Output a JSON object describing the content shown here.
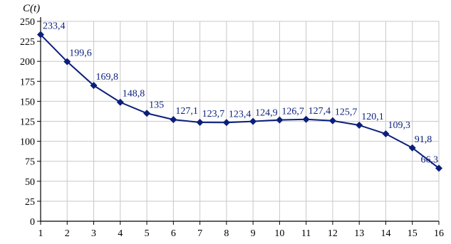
{
  "chart_data": {
    "type": "line",
    "ylabel": "C(t)",
    "xlabel": "",
    "x": [
      1,
      2,
      3,
      4,
      5,
      6,
      7,
      8,
      9,
      10,
      11,
      12,
      13,
      14,
      15,
      16
    ],
    "x_tick_labels": [
      "1",
      "2",
      "3",
      "4",
      "5",
      "6",
      "7",
      "8",
      "9",
      "10",
      "11",
      "12",
      "13",
      "14",
      "15",
      "16"
    ],
    "y_tick_labels": [
      "0",
      "25",
      "50",
      "75",
      "100",
      "125",
      "150",
      "175",
      "200",
      "225",
      "250"
    ],
    "series": [
      {
        "values": [
          233.4,
          199.6,
          169.8,
          148.8,
          135,
          127.1,
          123.7,
          123.4,
          124.9,
          126.7,
          127.4,
          125.7,
          120.1,
          109.3,
          91.8,
          66.3
        ],
        "labels": [
          "233,4",
          "199,6",
          "169,8",
          "148,8",
          "135",
          "127,1",
          "123,7",
          "123,4",
          "124,9",
          "126,7",
          "127,4",
          "125,7",
          "120,1",
          "109,3",
          "91,8",
          "66,3"
        ]
      }
    ],
    "xlim": [
      1,
      16
    ],
    "ylim": [
      0,
      250
    ],
    "y_tick_step": 25,
    "grid": true,
    "marker": "diamond",
    "line_color": "#0b1f7a",
    "label_color": "#0b1f7a",
    "grid_color": "#c8c8c8",
    "axis_color": "#000000"
  }
}
